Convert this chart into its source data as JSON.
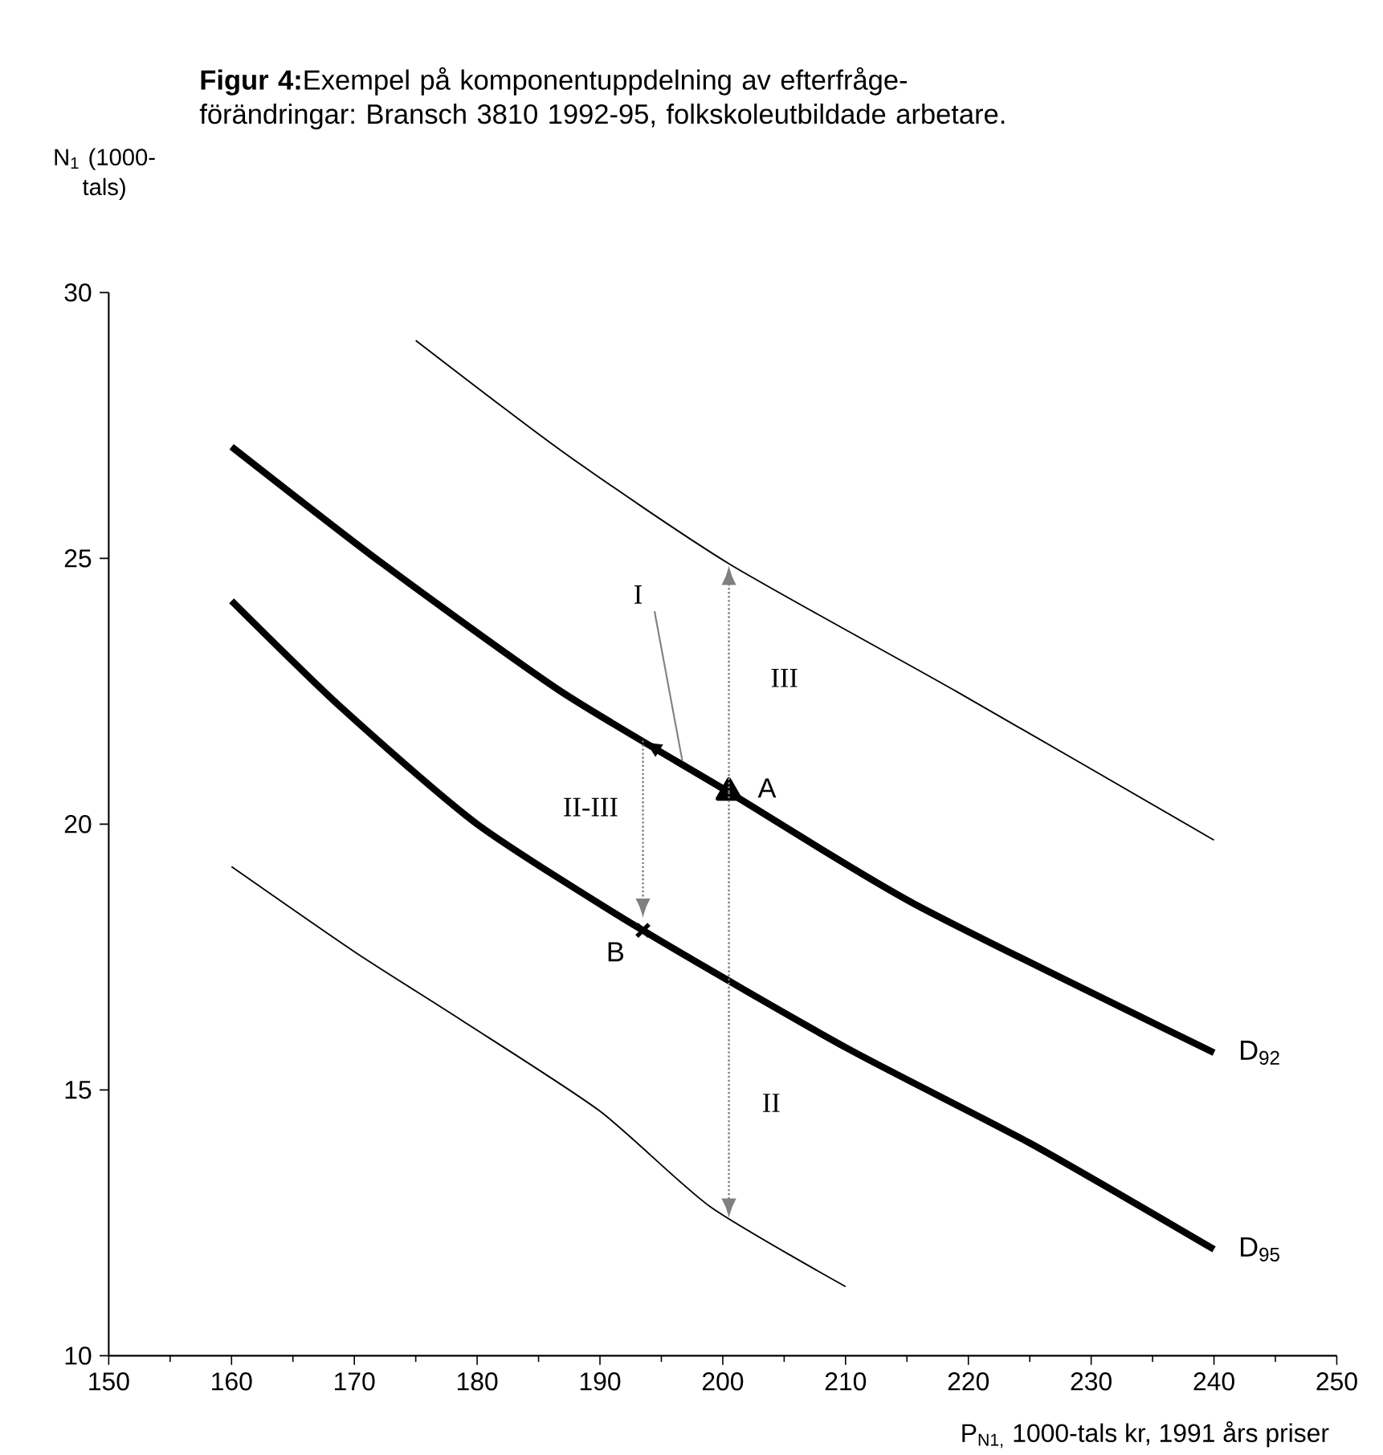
{
  "chart_data": {
    "type": "line",
    "title": "**Figur 4:**Exempel på komponentuppdelning av efterfråge-förändringar: Bransch 3810 1992-95, folkskoleutbildade arbetare.",
    "xlabel": "P$_{N1,}$ 1000-tals kr, 1991 års priser",
    "ylabel": "N$_{1}$ (1000-tals)",
    "xlim": [
      150,
      250
    ],
    "xticks": [
      150,
      160,
      170,
      180,
      190,
      200,
      210,
      220,
      230,
      240,
      250
    ],
    "ylim": [
      10,
      30
    ],
    "yticks": [
      10,
      15,
      20,
      25,
      30
    ],
    "grid": false,
    "series": [
      {
        "color": "#000000",
        "x": [
          175,
          187,
          200.5,
          219,
          240
        ],
        "values": [
          29.1,
          27.0,
          24.9,
          22.5,
          19.7
        ]
      },
      {
        "name": "D$_{92}$",
        "color": "#000000",
        "x": [
          160,
          172.3,
          186.8,
          200.5,
          215.6,
          240
        ],
        "values": [
          27.1,
          24.9,
          22.5,
          20.6,
          18.5,
          15.7
        ]
      },
      {
        "name": "D$_{95}$",
        "color": "#000000",
        "x": [
          160,
          168.9,
          180,
          193.5,
          210,
          225,
          240
        ],
        "values": [
          24.2,
          22.2,
          20.0,
          18.0,
          15.8,
          14.0,
          12.0
        ]
      },
      {
        "color": "#000000",
        "x": [
          160,
          170,
          178.8,
          190,
          199,
          210
        ],
        "values": [
          19.2,
          17.6,
          16.3,
          14.6,
          12.8,
          11.3
        ]
      },
      {
        "type": "scatter",
        "name": "A",
        "color": "#000000",
        "marker": "triangle",
        "x": [
          200.5
        ],
        "values": [
          20.6
        ]
      },
      {
        "type": "scatter",
        "name": "B",
        "color": "#000000",
        "marker": "cross",
        "x": [
          193.5
        ],
        "values": [
          18.0
        ]
      }
    ],
    "annotations": [
      {
        "text": "I",
        "x": 196.7,
        "y": 21.2
      },
      "III",
      "II-III",
      "II"
    ]
  }
}
